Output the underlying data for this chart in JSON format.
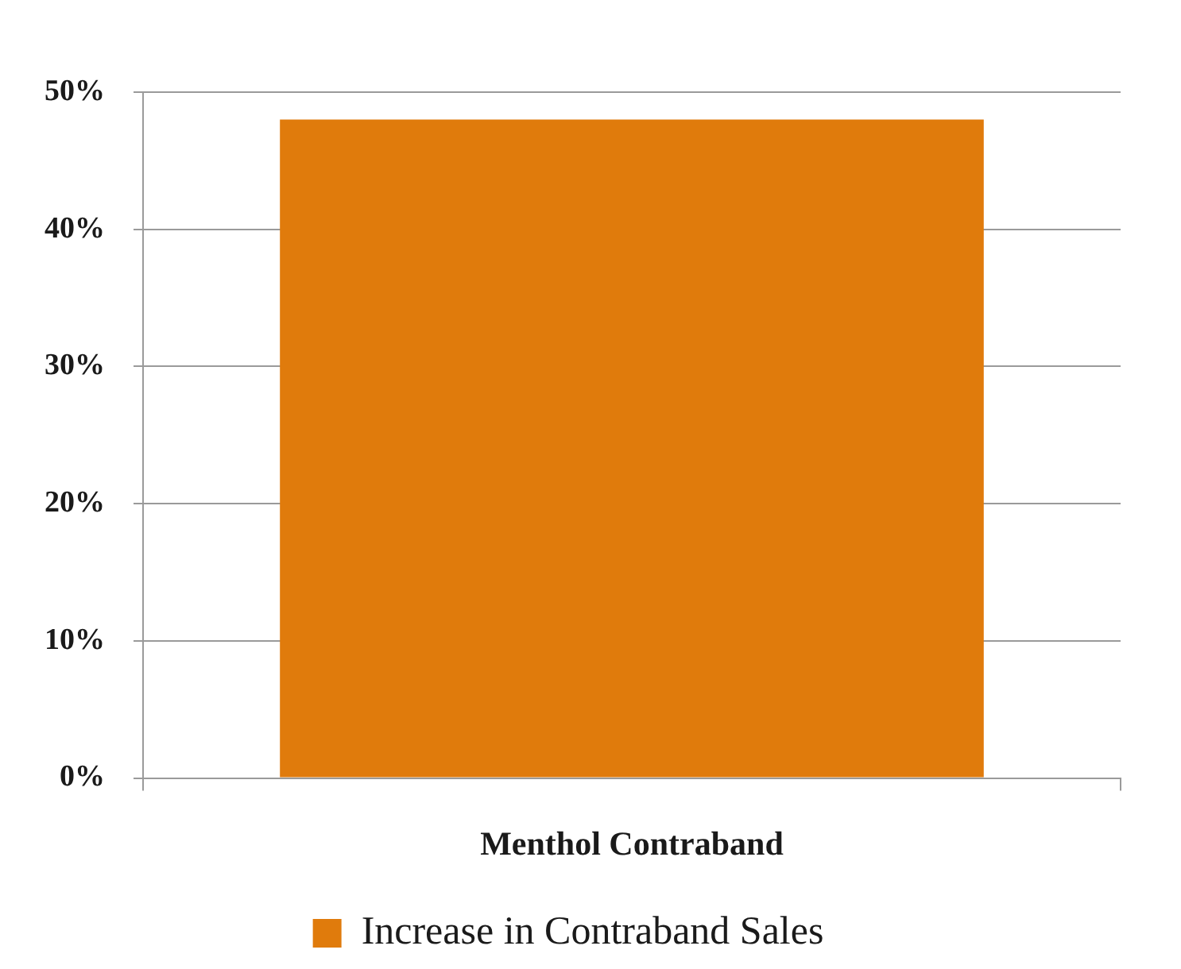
{
  "chart_data": {
    "type": "bar",
    "categories": [
      "Menthol Contraband"
    ],
    "series": [
      {
        "name": "Increase in Contraband Sales",
        "color": "#e07b0c",
        "values": [
          48
        ]
      }
    ],
    "ylim": [
      0,
      50
    ],
    "yticks": [
      {
        "value": 0,
        "label": "0%"
      },
      {
        "value": 10,
        "label": "10%"
      },
      {
        "value": 20,
        "label": "20%"
      },
      {
        "value": 30,
        "label": "30%"
      },
      {
        "value": 40,
        "label": "40%"
      },
      {
        "value": 50,
        "label": "50%"
      }
    ],
    "grid": "y",
    "legend": "bottom"
  }
}
